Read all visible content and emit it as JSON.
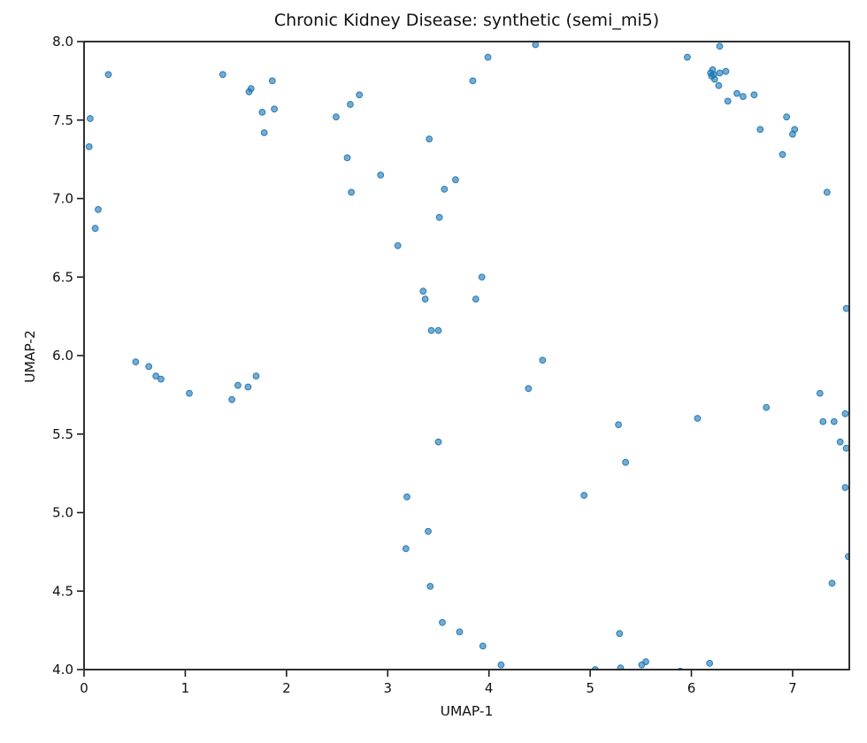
{
  "figure": {
    "background": "#ffffff"
  },
  "chart_data": {
    "type": "scatter",
    "title": "Chronic Kidney Disease: synthetic (semi_mi5)",
    "xlabel": "UMAP-1",
    "ylabel": "UMAP-2",
    "xlim": [
      0,
      7.56
    ],
    "ylim": [
      4.0,
      8.0
    ],
    "x_ticks": {
      "values": [
        0,
        1,
        2,
        3,
        4,
        5,
        6,
        7
      ],
      "labels": [
        "0",
        "1",
        "2",
        "3",
        "4",
        "5",
        "6",
        "7"
      ]
    },
    "y_ticks": {
      "values": [
        4.0,
        4.5,
        5.0,
        5.5,
        6.0,
        6.5,
        7.0,
        7.5,
        8.0
      ],
      "labels": [
        "4.0",
        "4.5",
        "5.0",
        "5.5",
        "6.0",
        "6.5",
        "7.0",
        "7.5",
        "8.0"
      ]
    },
    "grid": false,
    "legend": "none",
    "axis_color": "#1a1a1a",
    "text_color": "#111111",
    "marker": {
      "color": "#1f77b4",
      "fill_opacity": 0.62,
      "edge_opacity": 0.95,
      "radius": 3.4
    },
    "points": [
      [
        4.46,
        7.98
      ],
      [
        6.28,
        7.97
      ],
      [
        3.99,
        7.9
      ],
      [
        5.96,
        7.9
      ],
      [
        6.21,
        7.82
      ],
      [
        6.34,
        7.81
      ],
      [
        6.19,
        7.8
      ],
      [
        6.28,
        7.8
      ],
      [
        0.24,
        7.79
      ],
      [
        1.37,
        7.79
      ],
      [
        6.22,
        7.79
      ],
      [
        6.2,
        7.78
      ],
      [
        6.23,
        7.76
      ],
      [
        3.84,
        7.75
      ],
      [
        1.86,
        7.75
      ],
      [
        6.27,
        7.72
      ],
      [
        1.65,
        7.7
      ],
      [
        1.63,
        7.68
      ],
      [
        6.45,
        7.67
      ],
      [
        2.72,
        7.66
      ],
      [
        6.62,
        7.66
      ],
      [
        6.51,
        7.65
      ],
      [
        6.36,
        7.62
      ],
      [
        2.63,
        7.6
      ],
      [
        1.88,
        7.57
      ],
      [
        1.76,
        7.55
      ],
      [
        6.94,
        7.52
      ],
      [
        2.49,
        7.52
      ],
      [
        0.06,
        7.51
      ],
      [
        6.68,
        7.44
      ],
      [
        7.02,
        7.44
      ],
      [
        1.78,
        7.42
      ],
      [
        7.0,
        7.41
      ],
      [
        3.41,
        7.38
      ],
      [
        0.05,
        7.33
      ],
      [
        6.9,
        7.28
      ],
      [
        2.6,
        7.26
      ],
      [
        2.93,
        7.15
      ],
      [
        3.67,
        7.12
      ],
      [
        3.56,
        7.06
      ],
      [
        2.64,
        7.04
      ],
      [
        7.34,
        7.04
      ],
      [
        0.14,
        6.93
      ],
      [
        3.51,
        6.88
      ],
      [
        0.11,
        6.81
      ],
      [
        3.1,
        6.7
      ],
      [
        3.93,
        6.5
      ],
      [
        3.35,
        6.41
      ],
      [
        3.37,
        6.36
      ],
      [
        3.87,
        6.36
      ],
      [
        7.53,
        6.3
      ],
      [
        3.43,
        6.16
      ],
      [
        3.5,
        6.16
      ],
      [
        4.53,
        5.97
      ],
      [
        0.51,
        5.96
      ],
      [
        0.64,
        5.93
      ],
      [
        0.71,
        5.87
      ],
      [
        1.7,
        5.87
      ],
      [
        0.76,
        5.85
      ],
      [
        1.52,
        5.81
      ],
      [
        1.62,
        5.8
      ],
      [
        4.39,
        5.79
      ],
      [
        1.04,
        5.76
      ],
      [
        7.27,
        5.76
      ],
      [
        1.46,
        5.72
      ],
      [
        6.74,
        5.67
      ],
      [
        7.52,
        5.63
      ],
      [
        6.06,
        5.6
      ],
      [
        7.3,
        5.58
      ],
      [
        7.41,
        5.58
      ],
      [
        5.28,
        5.56
      ],
      [
        3.5,
        5.45
      ],
      [
        7.47,
        5.45
      ],
      [
        7.53,
        5.41
      ],
      [
        5.35,
        5.32
      ],
      [
        7.52,
        5.16
      ],
      [
        4.94,
        5.11
      ],
      [
        3.19,
        5.1
      ],
      [
        3.4,
        4.88
      ],
      [
        3.18,
        4.77
      ],
      [
        7.55,
        4.72
      ],
      [
        7.39,
        4.55
      ],
      [
        3.42,
        4.53
      ],
      [
        3.54,
        4.3
      ],
      [
        3.71,
        4.24
      ],
      [
        5.29,
        4.23
      ],
      [
        3.94,
        4.15
      ],
      [
        5.55,
        4.05
      ],
      [
        6.18,
        4.04
      ],
      [
        4.12,
        4.03
      ],
      [
        5.51,
        4.03
      ],
      [
        5.3,
        4.01
      ],
      [
        5.05,
        4.0
      ],
      [
        5.89,
        3.99
      ]
    ]
  }
}
